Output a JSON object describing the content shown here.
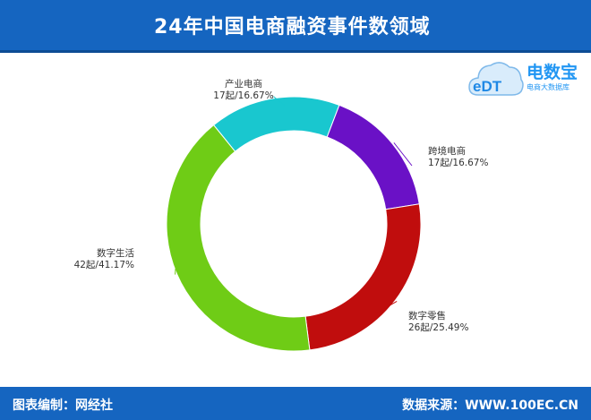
{
  "header": {
    "title": "24年中国电商融资事件数领域"
  },
  "logo": {
    "title": "电数宝",
    "subtitle": "电商大数据库",
    "mark": "eDT"
  },
  "footer": {
    "left": "图表编制：网经社",
    "right": "数据来源：WWW.100EC.CN"
  },
  "colors": {
    "header_bg": "#1565c0",
    "产业电商": "#19c7cf",
    "跨境电商": "#6a11c6",
    "数字零售": "#c00d0d",
    "数字生活": "#6fcc16"
  },
  "chart_data": {
    "type": "pie",
    "donut": true,
    "unit": "起",
    "slices": [
      {
        "name": "产业电商",
        "value": 17,
        "percent": 16.67,
        "color": "#19c7cf",
        "label": "17起/16.67%"
      },
      {
        "name": "跨境电商",
        "value": 17,
        "percent": 16.67,
        "color": "#6a11c6",
        "label": "17起/16.67%"
      },
      {
        "name": "数字零售",
        "value": 26,
        "percent": 25.49,
        "color": "#c00d0d",
        "label": "26起/25.49%"
      },
      {
        "name": "数字生活",
        "value": 42,
        "percent": 41.17,
        "color": "#6fcc16",
        "label": "42起/41.17%"
      }
    ]
  }
}
